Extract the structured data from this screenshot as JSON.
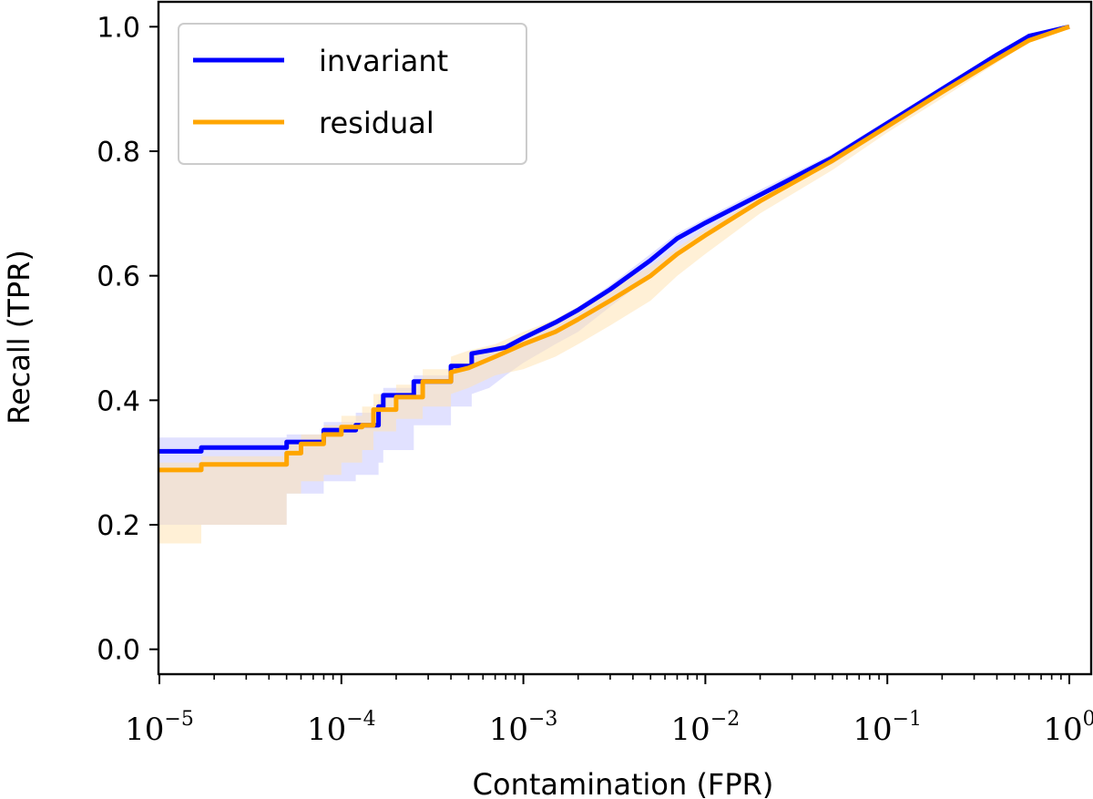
{
  "chart_data": {
    "type": "line",
    "title": "",
    "xlabel": "Contamination (FPR)",
    "ylabel": "Recall (TPR)",
    "xscale": "log",
    "xlim": [
      1e-05,
      1
    ],
    "ylim": [
      -0.04,
      1.04
    ],
    "x_ticks": [
      {
        "base": "10",
        "exp": "−5",
        "value": 1e-05
      },
      {
        "base": "10",
        "exp": "−4",
        "value": 0.0001
      },
      {
        "base": "10",
        "exp": "−3",
        "value": 0.001
      },
      {
        "base": "10",
        "exp": "−2",
        "value": 0.01
      },
      {
        "base": "10",
        "exp": "−1",
        "value": 0.1
      },
      {
        "base": "10",
        "exp": "0",
        "value": 1
      }
    ],
    "y_ticks": [
      "0.0",
      "0.2",
      "0.4",
      "0.6",
      "0.8",
      "1.0"
    ],
    "legend_position": "top-left",
    "series": [
      {
        "name": "invariant",
        "color": "#0000ff",
        "band_color": "#c8c8ff",
        "x": [
          1e-05,
          1.7e-05,
          1.7e-05,
          5e-05,
          5e-05,
          8e-05,
          8e-05,
          0.00012,
          0.00012,
          0.00016,
          0.00016,
          0.00017,
          0.00017,
          0.00025,
          0.00025,
          0.0004,
          0.0004,
          0.00052,
          0.00052,
          0.00065,
          0.0008,
          0.001,
          0.0015,
          0.002,
          0.003,
          0.005,
          0.007,
          0.01,
          0.02,
          0.05,
          0.1,
          0.2,
          0.4,
          0.6,
          1.0
        ],
        "y": [
          0.318,
          0.318,
          0.324,
          0.324,
          0.333,
          0.333,
          0.352,
          0.352,
          0.36,
          0.36,
          0.39,
          0.39,
          0.408,
          0.408,
          0.43,
          0.43,
          0.455,
          0.455,
          0.475,
          0.48,
          0.485,
          0.5,
          0.525,
          0.545,
          0.578,
          0.625,
          0.66,
          0.685,
          0.73,
          0.79,
          0.845,
          0.9,
          0.955,
          0.985,
          1.0
        ],
        "upper": [
          0.34,
          0.34,
          0.34,
          0.34,
          0.345,
          0.345,
          0.365,
          0.365,
          0.38,
          0.38,
          0.4,
          0.4,
          0.42,
          0.42,
          0.44,
          0.44,
          0.46,
          0.46,
          0.48,
          0.485,
          0.49,
          0.505,
          0.53,
          0.55,
          0.585,
          0.635,
          0.668,
          0.692,
          0.738,
          0.796,
          0.85,
          0.905,
          0.958,
          0.987,
          1.0
        ],
        "lower": [
          0.2,
          0.2,
          0.2,
          0.2,
          0.25,
          0.25,
          0.27,
          0.27,
          0.28,
          0.28,
          0.3,
          0.3,
          0.32,
          0.32,
          0.36,
          0.36,
          0.39,
          0.39,
          0.41,
          0.42,
          0.44,
          0.46,
          0.49,
          0.51,
          0.55,
          0.6,
          0.64,
          0.67,
          0.72,
          0.78,
          0.835,
          0.89,
          0.95,
          0.982,
          1.0
        ]
      },
      {
        "name": "residual",
        "color": "#ffa500",
        "band_color": "#ffe4b5",
        "x": [
          1e-05,
          1.7e-05,
          1.7e-05,
          5e-05,
          5e-05,
          6e-05,
          6e-05,
          8e-05,
          8e-05,
          0.0001,
          0.0001,
          0.00013,
          0.00013,
          0.00015,
          0.00015,
          0.0002,
          0.0002,
          0.00028,
          0.00028,
          0.0004,
          0.0004,
          0.0005,
          0.0007,
          0.001,
          0.0015,
          0.002,
          0.003,
          0.005,
          0.007,
          0.01,
          0.02,
          0.05,
          0.1,
          0.2,
          0.4,
          0.6,
          1.0
        ],
        "y": [
          0.288,
          0.288,
          0.297,
          0.297,
          0.315,
          0.315,
          0.33,
          0.33,
          0.345,
          0.345,
          0.357,
          0.357,
          0.36,
          0.36,
          0.385,
          0.385,
          0.405,
          0.405,
          0.43,
          0.43,
          0.445,
          0.452,
          0.47,
          0.49,
          0.51,
          0.53,
          0.56,
          0.6,
          0.635,
          0.665,
          0.72,
          0.785,
          0.84,
          0.895,
          0.948,
          0.978,
          1.0
        ],
        "upper": [
          0.3,
          0.3,
          0.31,
          0.31,
          0.33,
          0.33,
          0.345,
          0.345,
          0.36,
          0.36,
          0.375,
          0.375,
          0.39,
          0.39,
          0.41,
          0.41,
          0.425,
          0.425,
          0.45,
          0.45,
          0.47,
          0.48,
          0.49,
          0.51,
          0.53,
          0.55,
          0.58,
          0.615,
          0.645,
          0.675,
          0.728,
          0.79,
          0.845,
          0.9,
          0.952,
          0.98,
          1.0
        ],
        "lower": [
          0.17,
          0.17,
          0.2,
          0.2,
          0.25,
          0.25,
          0.27,
          0.27,
          0.28,
          0.28,
          0.3,
          0.3,
          0.32,
          0.32,
          0.35,
          0.35,
          0.37,
          0.37,
          0.39,
          0.39,
          0.41,
          0.42,
          0.44,
          0.45,
          0.47,
          0.49,
          0.52,
          0.56,
          0.6,
          0.635,
          0.7,
          0.77,
          0.83,
          0.885,
          0.942,
          0.975,
          1.0
        ]
      }
    ]
  }
}
